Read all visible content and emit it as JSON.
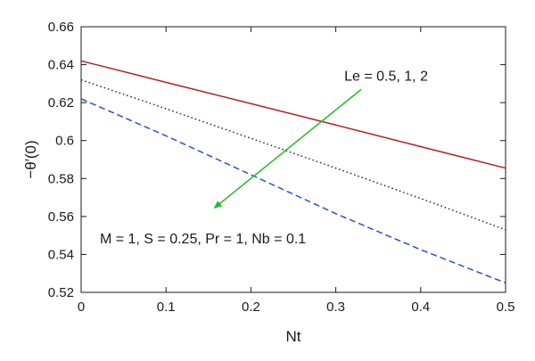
{
  "chart_data": {
    "type": "line",
    "title": "",
    "xlabel": "Nt",
    "ylabel": "−θ′(0)",
    "xlim": [
      0,
      0.5
    ],
    "ylim": [
      0.52,
      0.66
    ],
    "xticks": [
      0,
      0.1,
      0.2,
      0.3,
      0.4,
      0.5
    ],
    "yticks": [
      0.52,
      0.54,
      0.56,
      0.58,
      0.6,
      0.62,
      0.64,
      0.66
    ],
    "xtick_labels": [
      "0",
      "0.1",
      "0.2",
      "0.3",
      "0.4",
      "0.5"
    ],
    "ytick_labels": [
      "0.52",
      "0.54",
      "0.56",
      "0.58",
      "0.6",
      "0.62",
      "0.64",
      "0.66"
    ],
    "grid": false,
    "series": [
      {
        "color": "#b22222",
        "linestyle": "solid",
        "x": [
          0,
          0.1,
          0.2,
          0.3,
          0.4,
          0.5
        ],
        "y": [
          0.642,
          0.6307,
          0.6195,
          0.6082,
          0.5968,
          0.5855
        ]
      },
      {
        "color": "#1a1a1a",
        "linestyle": "dotted",
        "x": [
          0,
          0.1,
          0.2,
          0.3,
          0.4,
          0.5
        ],
        "y": [
          0.632,
          0.6168,
          0.6012,
          0.5855,
          0.5695,
          0.553
        ]
      },
      {
        "color": "#2a4fcf",
        "linestyle": "dashed",
        "x": [
          0,
          0.1,
          0.2,
          0.3,
          0.4,
          0.5
        ],
        "y": [
          0.622,
          0.6025,
          0.582,
          0.5615,
          0.5425,
          0.525
        ]
      }
    ],
    "annotations": {
      "le_text": "Le = 0.5, 1, 2",
      "params_text": "M = 1, S = 0.25, Pr = 1, Nb = 0.1",
      "arrow": {
        "color": "#22bb22",
        "from": [
          0.33,
          0.627
        ],
        "to": [
          0.157,
          0.5645
        ]
      },
      "le_text_anchor": [
        0.31,
        0.6315
      ],
      "params_text_anchor": [
        0.022,
        0.5458
      ]
    }
  }
}
